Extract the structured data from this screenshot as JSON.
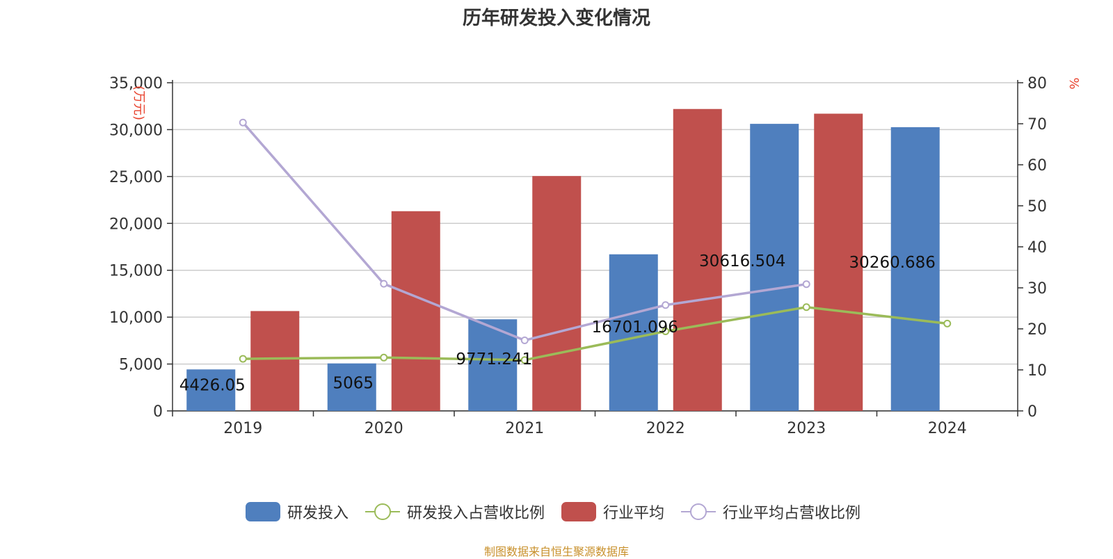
{
  "title": "历年研发投入变化情况",
  "source": "制图数据来自恒生聚源数据库",
  "chart_data": {
    "type": "bar",
    "title": "历年研发投入变化情况",
    "categories": [
      "2019",
      "2020",
      "2021",
      "2022",
      "2023",
      "2024"
    ],
    "left_axis": {
      "label": "(万元)",
      "ylim": [
        0,
        35000
      ],
      "ticks": [
        "0",
        "5,000",
        "10,000",
        "15,000",
        "20,000",
        "25,000",
        "30,000",
        "35,000"
      ]
    },
    "right_axis": {
      "label": "%",
      "ylim": [
        0,
        80
      ],
      "ticks": [
        "0",
        "10",
        "20",
        "30",
        "40",
        "50",
        "60",
        "70",
        "80"
      ]
    },
    "series": [
      {
        "name": "研发投入",
        "type": "bar",
        "axis": "left",
        "color": "#4f7fbe",
        "values": [
          4426.05,
          5065,
          9771.241,
          16701.096,
          30616.504,
          30260.686
        ],
        "labels": [
          "4426.05",
          "5065",
          "9771.241",
          "16701.096",
          "30616.504",
          "30260.686"
        ]
      },
      {
        "name": "研发投入占营收比例",
        "type": "line",
        "axis": "right",
        "color": "#9bbb59",
        "values": [
          12.7,
          13.0,
          12.4,
          19.4,
          25.3,
          21.3
        ]
      },
      {
        "name": "行业平均",
        "type": "bar",
        "axis": "left",
        "color": "#c0504d",
        "values": [
          10650,
          21300,
          25050,
          32200,
          31700,
          null
        ]
      },
      {
        "name": "行业平均占营收比例",
        "type": "line",
        "axis": "right",
        "color": "#b3a7d3",
        "values": [
          70.3,
          31.0,
          17.2,
          25.8,
          30.9,
          null
        ]
      }
    ],
    "grid": true,
    "legend_position": "bottom"
  }
}
